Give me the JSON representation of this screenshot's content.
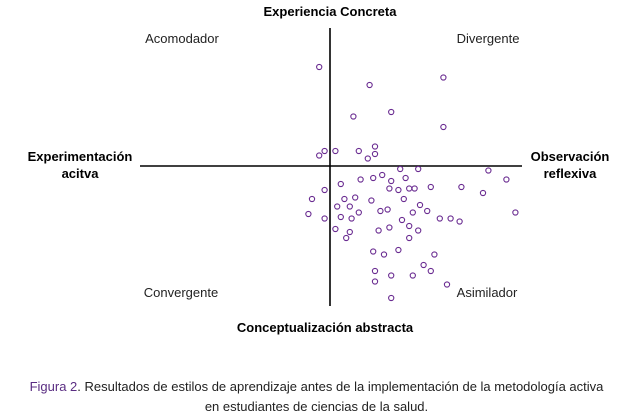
{
  "chart_data": {
    "type": "scatter",
    "axes": {
      "top": "Experiencia Concreta",
      "bottom": "Conceptualización abstracta",
      "left_line1": "Experimentación",
      "left_line2": "acitva",
      "right_line1": "Observación",
      "right_line2": "reflexiva"
    },
    "quadrants": {
      "top_left": "Acomodador",
      "top_right": "Divergente",
      "bottom_left": "Convergente",
      "bottom_right": "Asimilador"
    },
    "xlim": [
      -10,
      10
    ],
    "ylim": [
      -10,
      10
    ],
    "grid": false,
    "marker_color": "#6a2c91",
    "points": [
      [
        -0.6,
        6.6
      ],
      [
        2.2,
        5.4
      ],
      [
        6.3,
        5.9
      ],
      [
        3.4,
        3.6
      ],
      [
        6.3,
        2.6
      ],
      [
        1.3,
        3.3
      ],
      [
        -0.6,
        0.7
      ],
      [
        -0.3,
        1.0
      ],
      [
        0.3,
        1.0
      ],
      [
        1.6,
        1.0
      ],
      [
        2.5,
        1.3
      ],
      [
        2.5,
        0.8
      ],
      [
        2.1,
        0.5
      ],
      [
        3.9,
        -0.2
      ],
      [
        4.9,
        -0.2
      ],
      [
        8.8,
        -0.3
      ],
      [
        9.8,
        -0.9
      ],
      [
        2.4,
        -0.8
      ],
      [
        2.9,
        -0.6
      ],
      [
        3.4,
        -1.0
      ],
      [
        4.2,
        -0.8
      ],
      [
        1.7,
        -0.9
      ],
      [
        0.6,
        -1.2
      ],
      [
        3.3,
        -1.5
      ],
      [
        3.8,
        -1.6
      ],
      [
        4.4,
        -1.5
      ],
      [
        4.7,
        -1.5
      ],
      [
        5.6,
        -1.4
      ],
      [
        7.3,
        -1.4
      ],
      [
        8.5,
        -1.8
      ],
      [
        -0.3,
        -1.6
      ],
      [
        -1.0,
        -2.2
      ],
      [
        0.8,
        -2.2
      ],
      [
        1.4,
        -2.1
      ],
      [
        2.3,
        -2.3
      ],
      [
        4.1,
        -2.2
      ],
      [
        -1.2,
        -3.2
      ],
      [
        0.4,
        -2.7
      ],
      [
        1.1,
        -2.7
      ],
      [
        1.6,
        -3.1
      ],
      [
        2.8,
        -3.0
      ],
      [
        3.2,
        -2.9
      ],
      [
        4.6,
        -3.1
      ],
      [
        5.0,
        -2.6
      ],
      [
        5.4,
        -3.0
      ],
      [
        -0.3,
        -3.5
      ],
      [
        0.6,
        -3.4
      ],
      [
        1.2,
        -3.5
      ],
      [
        4.0,
        -3.6
      ],
      [
        6.1,
        -3.5
      ],
      [
        7.2,
        -3.7
      ],
      [
        4.4,
        -4.0
      ],
      [
        0.3,
        -4.2
      ],
      [
        1.1,
        -4.4
      ],
      [
        2.7,
        -4.3
      ],
      [
        3.3,
        -4.1
      ],
      [
        4.9,
        -4.3
      ],
      [
        0.9,
        -4.8
      ],
      [
        4.4,
        -4.8
      ],
      [
        6.7,
        -3.5
      ],
      [
        10.3,
        -3.1
      ],
      [
        3.8,
        -5.6
      ],
      [
        2.4,
        -5.7
      ],
      [
        3.0,
        -5.9
      ],
      [
        5.8,
        -5.9
      ],
      [
        5.2,
        -6.6
      ],
      [
        5.6,
        -7.0
      ],
      [
        2.5,
        -7.0
      ],
      [
        3.4,
        -7.3
      ],
      [
        4.6,
        -7.3
      ],
      [
        6.5,
        -7.9
      ],
      [
        2.5,
        -7.7
      ],
      [
        3.4,
        -8.8
      ]
    ]
  },
  "caption": {
    "figure_label": "Figura 2",
    "text_line1": ". Resultados de estilos de aprendizaje antes de la implementación de la metodología activa",
    "text_line2": "en estudiantes de ciencias de la salud."
  }
}
